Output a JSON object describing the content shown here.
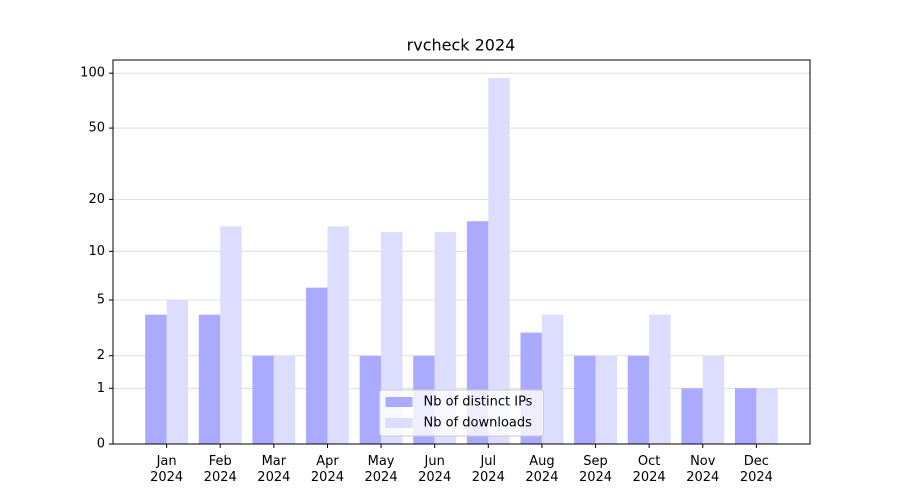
{
  "chart_data": {
    "type": "bar",
    "title": "rvcheck 2024",
    "categories": [
      "Jan\n2024",
      "Feb\n2024",
      "Mar\n2024",
      "Apr\n2024",
      "May\n2024",
      "Jun\n2024",
      "Jul\n2024",
      "Aug\n2024",
      "Sep\n2024",
      "Oct\n2024",
      "Nov\n2024",
      "Dec\n2024"
    ],
    "series": [
      {
        "name": "Nb of distinct IPs",
        "color": "#aaaaff",
        "values": [
          4,
          4,
          2,
          6,
          2,
          2,
          15,
          3,
          2,
          2,
          1,
          1
        ]
      },
      {
        "name": "Nb of downloads",
        "color": "#ddddff",
        "values": [
          5,
          14,
          2,
          14,
          13,
          13,
          94,
          4,
          2,
          4,
          2,
          1
        ]
      }
    ],
    "yscale": "log1p",
    "ylim": [
      0,
      118
    ],
    "yticks": [
      0,
      1,
      2,
      5,
      10,
      20,
      50,
      100
    ],
    "grid": true,
    "legend": "lower center"
  }
}
